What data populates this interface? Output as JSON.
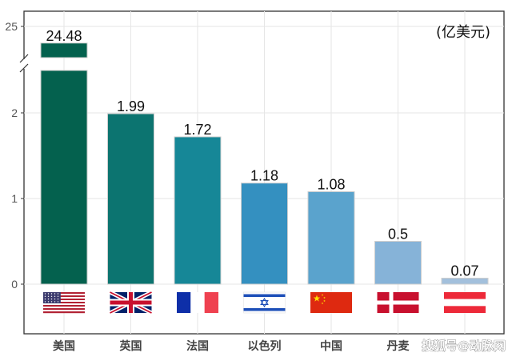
{
  "chart_data": {
    "type": "bar",
    "categories": [
      "美国",
      "英国",
      "法国",
      "以色列",
      "中国",
      "丹麦",
      "奥地利"
    ],
    "category_labels_visible": [
      "美国",
      "英国",
      "法国",
      "以色列",
      "中国",
      "丹麦",
      ""
    ],
    "values": [
      24.48,
      1.99,
      1.72,
      1.18,
      1.08,
      0.5,
      0.07
    ],
    "value_labels": [
      "24.48",
      "1.99",
      "1.72",
      "1.18",
      "1.08",
      "0.5",
      "0.07"
    ],
    "unit": "(亿美元)",
    "y_axis": {
      "broken": true,
      "lower_range": [
        -0.6,
        2.55
      ],
      "upper_range": [
        24.0,
        25.2
      ],
      "ticks": [
        "0",
        "1",
        "2",
        "25"
      ]
    },
    "grid": true,
    "bar_colors": [
      "#04614e",
      "#0c7470",
      "#168797",
      "#3490c0",
      "#5aa3cd",
      "#86b3d8",
      "#a3c0dc"
    ],
    "flags": [
      "us-flag-icon",
      "uk-flag-icon",
      "france-flag-icon",
      "israel-flag-icon",
      "china-flag-icon",
      "denmark-flag-icon",
      "austria-flag-icon"
    ]
  },
  "watermark": "搜狐号@动脉网"
}
